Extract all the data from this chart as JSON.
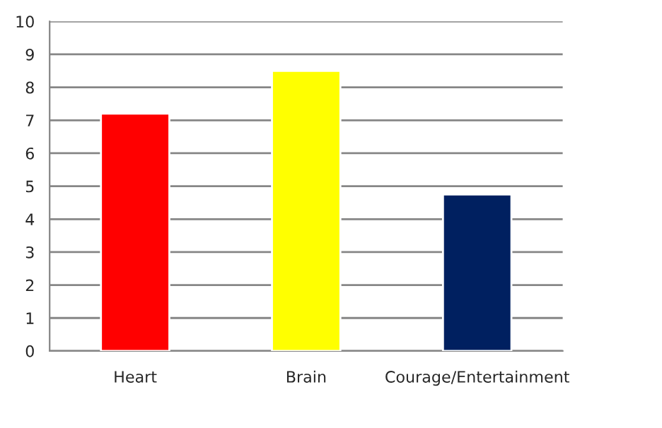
{
  "chart_data": {
    "type": "bar",
    "categories": [
      "Heart",
      "Brain",
      "Courage/Entertainment"
    ],
    "values": [
      7.2,
      8.5,
      4.75
    ],
    "colors": [
      "#ff0000",
      "#ffff00",
      "#002060"
    ],
    "ylim": [
      0,
      10
    ],
    "yticks": [
      0,
      1,
      2,
      3,
      4,
      5,
      6,
      7,
      8,
      9,
      10
    ],
    "grid": "y",
    "legend": false
  }
}
